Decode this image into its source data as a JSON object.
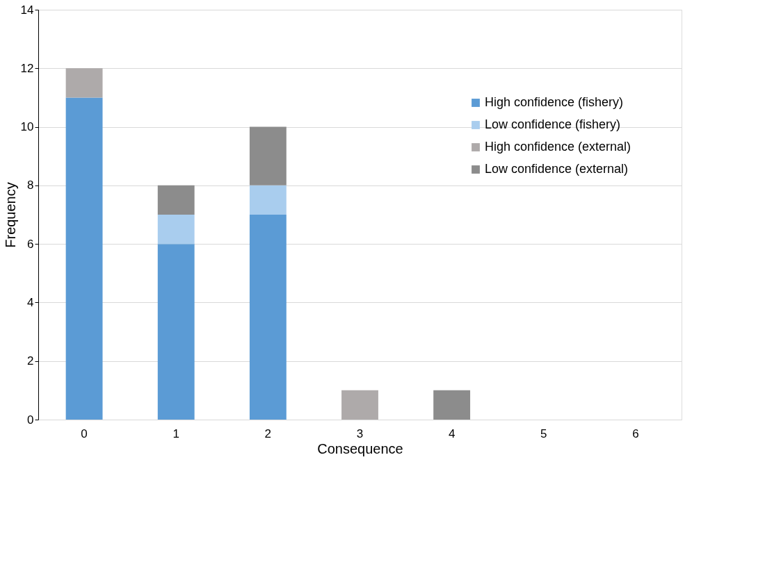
{
  "chart_data": {
    "type": "bar",
    "stacked": true,
    "xlabel": "Consequence",
    "ylabel": "Frequency",
    "categories": [
      "0",
      "1",
      "2",
      "3",
      "4",
      "5",
      "6"
    ],
    "series": [
      {
        "name": "High confidence (fishery)",
        "color": "#5b9bd5",
        "values": [
          11,
          6,
          7,
          0,
          0,
          0,
          0
        ]
      },
      {
        "name": "Low confidence (fishery)",
        "color": "#a9cdee",
        "values": [
          0,
          1,
          1,
          0,
          0,
          0,
          0
        ]
      },
      {
        "name": "High confidence (external)",
        "color": "#aeaaaa",
        "values": [
          1,
          0,
          0,
          1,
          0,
          0,
          0
        ]
      },
      {
        "name": "Low confidence (external)",
        "color": "#8c8c8c",
        "values": [
          0,
          1,
          2,
          0,
          1,
          0,
          0
        ]
      }
    ],
    "ylim": [
      0,
      14
    ],
    "yticks": [
      0,
      2,
      4,
      6,
      8,
      10,
      12,
      14
    ],
    "grid": "y",
    "legend": "right"
  }
}
